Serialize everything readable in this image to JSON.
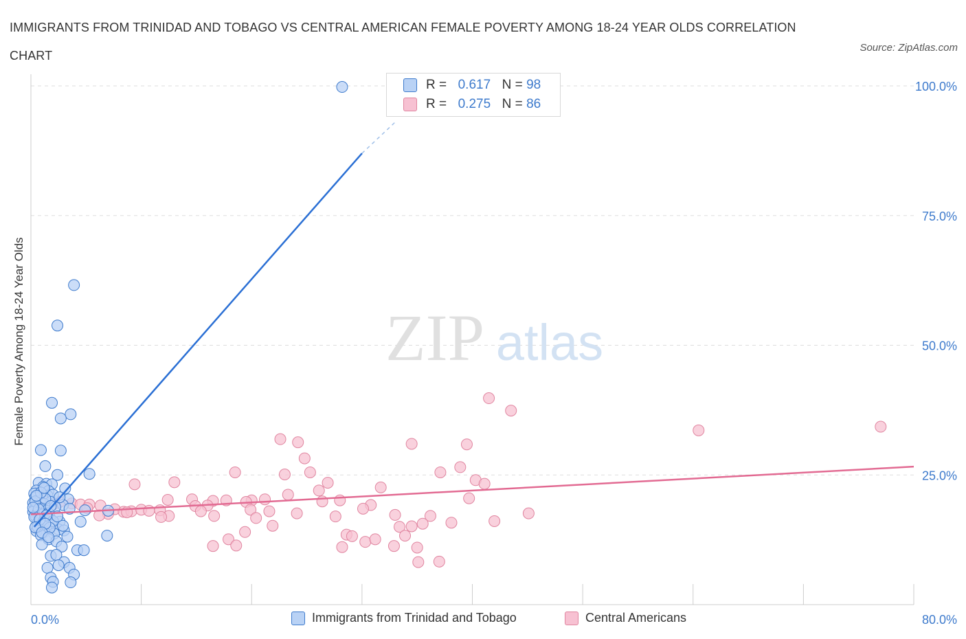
{
  "title": "IMMIGRANTS FROM TRINIDAD AND TOBAGO VS CENTRAL AMERICAN FEMALE POVERTY AMONG 18-24 YEAR OLDS CORRELATION CHART",
  "source": "Source: ZipAtlas.com",
  "watermark": {
    "zip": "ZIP",
    "atlas": "atlas"
  },
  "legend": {
    "r_label": "R =",
    "n_label": "N =",
    "series_a": {
      "r": "0.617",
      "n": "98"
    },
    "series_b": {
      "r": "0.275",
      "n": "86"
    }
  },
  "colors": {
    "series_a_fill": "#b9d2f5",
    "series_a_stroke": "#3d7acc",
    "series_a_line": "#2a6fd4",
    "series_b_fill": "#f7c1d2",
    "series_b_stroke": "#e0849f",
    "series_b_line": "#e26a92",
    "tick_label": "#3d7acc"
  },
  "chart_data": {
    "type": "scatter",
    "title": "IMMIGRANTS FROM TRINIDAD AND TOBAGO VS CENTRAL AMERICAN FEMALE POVERTY AMONG 18-24 YEAR OLDS CORRELATION CHART",
    "xlabel": "",
    "ylabel": "Female Poverty Among 18-24 Year Olds",
    "xlim": [
      0,
      80
    ],
    "ylim": [
      0,
      100
    ],
    "x_tick_labels": [
      "0.0%",
      "80.0%"
    ],
    "y_ticks": [
      25,
      50,
      75,
      100
    ],
    "y_tick_labels": [
      "25.0%",
      "50.0%",
      "75.0%",
      "100.0%"
    ],
    "grid": true,
    "legend_position": "bottom",
    "series": [
      {
        "name": "Immigrants from Trinidad and Tobago",
        "r": 0.617,
        "n": 98,
        "trend": {
          "x": [
            0.3,
            30
          ],
          "y": [
            15,
            87
          ],
          "dashed_to": [
            33,
            93
          ]
        },
        "points": [
          [
            28.2,
            99.8
          ],
          [
            3.9,
            61.6
          ],
          [
            2.4,
            53.8
          ],
          [
            1.9,
            38.9
          ],
          [
            3.6,
            36.7
          ],
          [
            2.7,
            35.9
          ],
          [
            0.9,
            29.8
          ],
          [
            2.7,
            29.7
          ],
          [
            1.3,
            26.7
          ],
          [
            5.3,
            25.2
          ],
          [
            2.4,
            25.0
          ],
          [
            0.7,
            23.5
          ],
          [
            1.4,
            23.3
          ],
          [
            1.9,
            23.2
          ],
          [
            1.1,
            22.7
          ],
          [
            3.1,
            22.4
          ],
          [
            0.5,
            22.0
          ],
          [
            1.6,
            21.9
          ],
          [
            0.3,
            21.4
          ],
          [
            1.5,
            21.0
          ],
          [
            2.0,
            21.2
          ],
          [
            0.4,
            20.7
          ],
          [
            3.4,
            20.3
          ],
          [
            0.8,
            20.0
          ],
          [
            1.8,
            19.8
          ],
          [
            0.2,
            19.6
          ],
          [
            1.2,
            19.4
          ],
          [
            2.9,
            19.2
          ],
          [
            0.5,
            18.9
          ],
          [
            1.0,
            18.6
          ],
          [
            0.3,
            18.3
          ],
          [
            1.4,
            18.1
          ],
          [
            0.2,
            17.9
          ],
          [
            0.6,
            17.7
          ],
          [
            3.5,
            18.5
          ],
          [
            4.9,
            18.2
          ],
          [
            7.0,
            18.1
          ],
          [
            1.1,
            17.4
          ],
          [
            0.4,
            17.1
          ],
          [
            1.7,
            16.8
          ],
          [
            0.9,
            16.5
          ],
          [
            1.4,
            16.2
          ],
          [
            2.6,
            16.0
          ],
          [
            4.5,
            16.0
          ],
          [
            0.6,
            15.7
          ],
          [
            1.0,
            15.4
          ],
          [
            1.9,
            15.3
          ],
          [
            1.4,
            14.9
          ],
          [
            0.8,
            14.6
          ],
          [
            2.5,
            14.5
          ],
          [
            3.0,
            14.3
          ],
          [
            1.2,
            14.0
          ],
          [
            0.5,
            14.2
          ],
          [
            2.1,
            13.7
          ],
          [
            0.9,
            13.4
          ],
          [
            3.3,
            13.1
          ],
          [
            6.9,
            13.3
          ],
          [
            1.6,
            12.6
          ],
          [
            2.3,
            12.2
          ],
          [
            1.0,
            11.6
          ],
          [
            2.8,
            11.2
          ],
          [
            4.2,
            10.5
          ],
          [
            4.8,
            10.5
          ],
          [
            1.8,
            9.4
          ],
          [
            2.3,
            9.6
          ],
          [
            3.0,
            8.2
          ],
          [
            2.5,
            7.6
          ],
          [
            1.5,
            7.1
          ],
          [
            3.5,
            7.1
          ],
          [
            3.9,
            5.8
          ],
          [
            1.8,
            5.2
          ],
          [
            2.0,
            4.4
          ],
          [
            3.6,
            4.3
          ],
          [
            1.9,
            3.3
          ],
          [
            0.4,
            19.9
          ],
          [
            1.3,
            20.4
          ],
          [
            2.2,
            18.8
          ],
          [
            0.7,
            18.4
          ],
          [
            1.6,
            17.6
          ],
          [
            0.3,
            16.9
          ],
          [
            2.0,
            16.1
          ],
          [
            1.1,
            15.9
          ],
          [
            0.6,
            15.0
          ],
          [
            1.7,
            14.8
          ],
          [
            0.9,
            21.6
          ],
          [
            2.6,
            20.7
          ],
          [
            1.2,
            22.5
          ],
          [
            0.5,
            21.0
          ],
          [
            1.8,
            19.0
          ],
          [
            0.2,
            18.7
          ],
          [
            1.4,
            17.2
          ],
          [
            2.4,
            17.0
          ],
          [
            0.8,
            16.4
          ],
          [
            1.3,
            15.6
          ],
          [
            2.9,
            15.2
          ],
          [
            0.4,
            14.9
          ],
          [
            1.0,
            13.9
          ],
          [
            1.6,
            13.0
          ]
        ]
      },
      {
        "name": "Central Americans",
        "r": 0.275,
        "n": 86,
        "trend": {
          "x": [
            0,
            80
          ],
          "y": [
            17.4,
            26.6
          ]
        },
        "points": [
          [
            77.0,
            34.3
          ],
          [
            60.5,
            33.6
          ],
          [
            41.5,
            39.8
          ],
          [
            43.5,
            37.4
          ],
          [
            22.6,
            31.9
          ],
          [
            24.2,
            31.3
          ],
          [
            34.5,
            31.0
          ],
          [
            39.5,
            30.9
          ],
          [
            24.8,
            28.2
          ],
          [
            38.9,
            26.5
          ],
          [
            18.5,
            25.5
          ],
          [
            25.3,
            25.5
          ],
          [
            23.0,
            25.1
          ],
          [
            37.1,
            25.5
          ],
          [
            40.3,
            24.0
          ],
          [
            13.0,
            23.6
          ],
          [
            26.9,
            23.5
          ],
          [
            41.1,
            23.3
          ],
          [
            9.4,
            23.2
          ],
          [
            31.7,
            22.6
          ],
          [
            26.1,
            22.0
          ],
          [
            23.3,
            21.2
          ],
          [
            12.4,
            20.2
          ],
          [
            14.6,
            20.3
          ],
          [
            16.5,
            20.0
          ],
          [
            17.7,
            20.1
          ],
          [
            20.0,
            20.1
          ],
          [
            21.2,
            20.3
          ],
          [
            28.0,
            20.1
          ],
          [
            39.7,
            20.5
          ],
          [
            26.4,
            19.9
          ],
          [
            14.9,
            19.0
          ],
          [
            16.0,
            19.1
          ],
          [
            19.5,
            19.8
          ],
          [
            3.7,
            19.5
          ],
          [
            4.5,
            19.3
          ],
          [
            5.3,
            19.3
          ],
          [
            6.3,
            19.1
          ],
          [
            0.9,
            20.7
          ],
          [
            1.6,
            20.1
          ],
          [
            2.6,
            19.8
          ],
          [
            2.1,
            19.4
          ],
          [
            30.8,
            19.2
          ],
          [
            7.6,
            18.4
          ],
          [
            8.4,
            17.9
          ],
          [
            9.1,
            18.0
          ],
          [
            10.0,
            18.3
          ],
          [
            10.7,
            18.1
          ],
          [
            11.7,
            18.2
          ],
          [
            12.5,
            17.1
          ],
          [
            15.4,
            18.0
          ],
          [
            16.6,
            17.1
          ],
          [
            19.9,
            18.3
          ],
          [
            21.6,
            18.0
          ],
          [
            24.1,
            17.6
          ],
          [
            27.6,
            17.0
          ],
          [
            30.1,
            18.5
          ],
          [
            33.0,
            17.3
          ],
          [
            36.2,
            17.1
          ],
          [
            45.1,
            17.6
          ],
          [
            7.0,
            17.5
          ],
          [
            6.2,
            17.2
          ],
          [
            42.0,
            16.1
          ],
          [
            38.1,
            15.8
          ],
          [
            35.5,
            15.6
          ],
          [
            33.4,
            15.0
          ],
          [
            21.9,
            15.2
          ],
          [
            19.4,
            14.0
          ],
          [
            28.6,
            13.5
          ],
          [
            29.1,
            13.2
          ],
          [
            33.9,
            13.3
          ],
          [
            17.9,
            12.6
          ],
          [
            30.3,
            12.1
          ],
          [
            31.2,
            12.6
          ],
          [
            18.6,
            11.4
          ],
          [
            32.9,
            11.3
          ],
          [
            35.0,
            11.0
          ],
          [
            28.2,
            11.1
          ],
          [
            16.5,
            11.3
          ],
          [
            34.5,
            15.1
          ],
          [
            37.0,
            8.3
          ],
          [
            35.1,
            8.2
          ],
          [
            20.4,
            16.7
          ],
          [
            11.8,
            16.9
          ],
          [
            8.7,
            17.8
          ],
          [
            5.1,
            18.6
          ]
        ]
      }
    ]
  }
}
